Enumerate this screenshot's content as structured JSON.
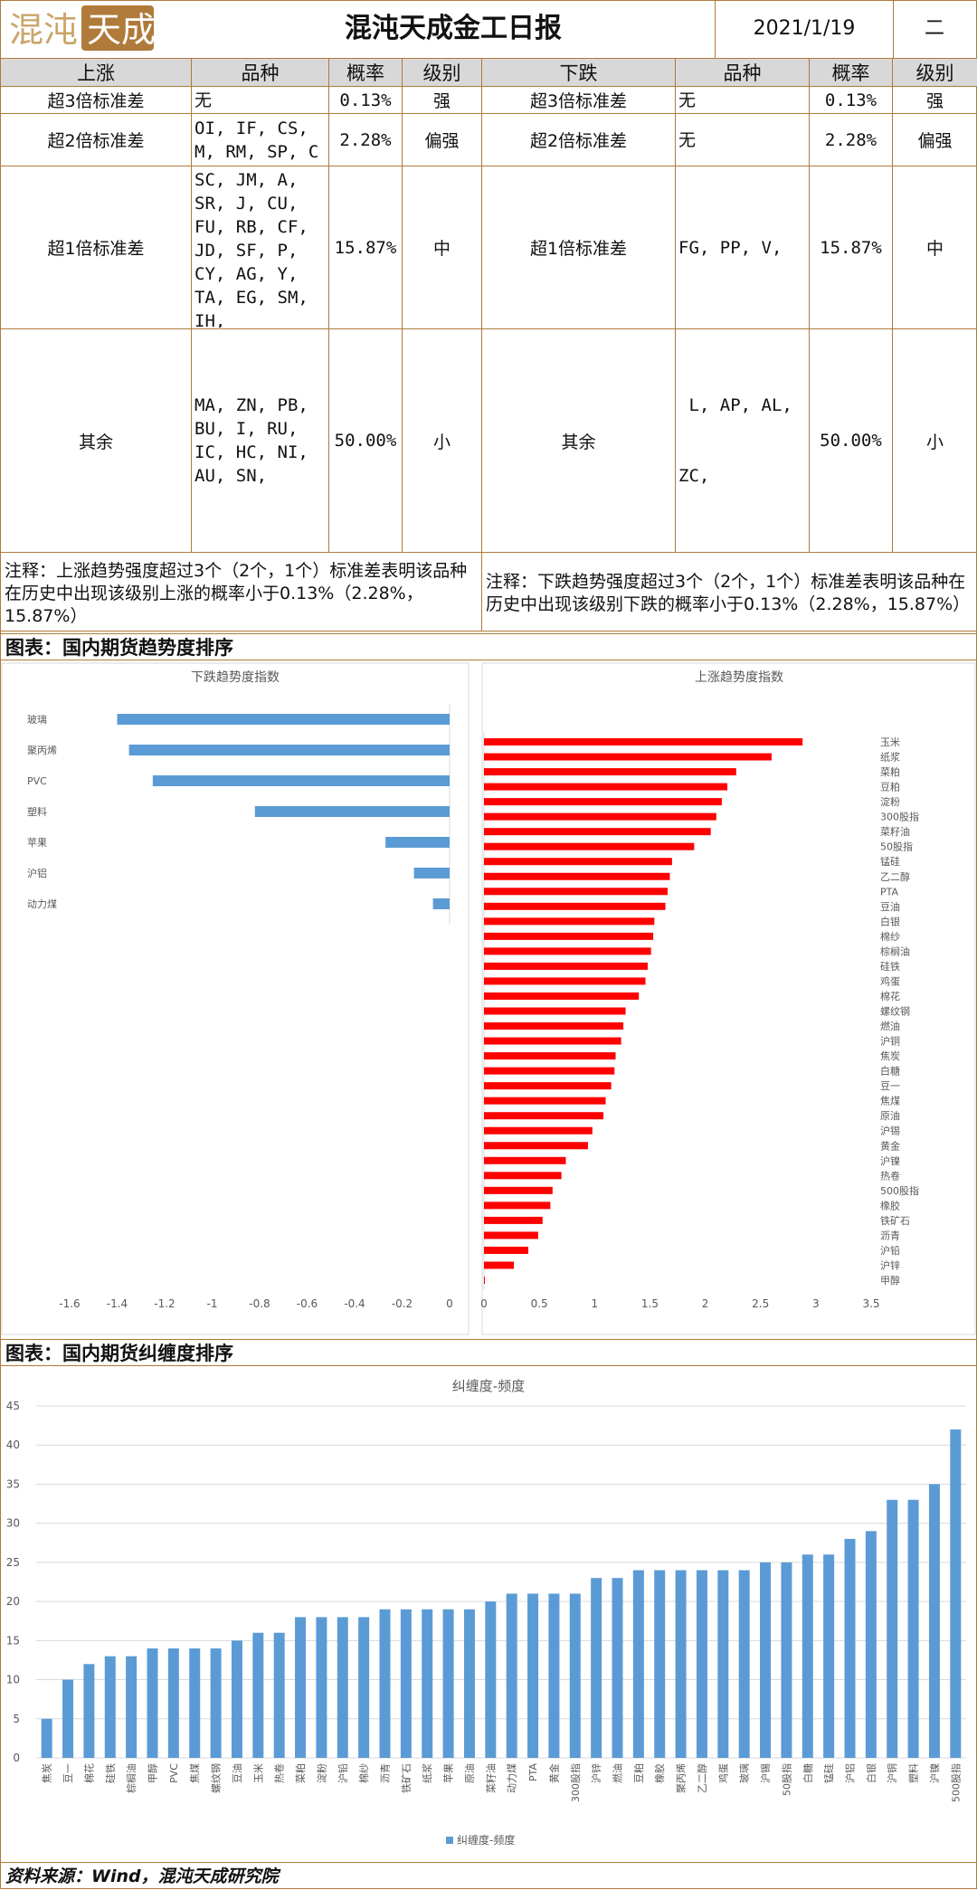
{
  "header": {
    "logo_text": "混沌天成",
    "title": "混沌天成金工日报",
    "date": "2021/1/19",
    "weekday": "二"
  },
  "table": {
    "up_head": {
      "col1": "上涨",
      "col2": "品种",
      "col3": "概率",
      "col4": "级别"
    },
    "down_head": {
      "col1": "下跌",
      "col2": "品种",
      "col3": "概率",
      "col4": "级别"
    },
    "rows": [
      {
        "level": "超3倍标准差",
        "up_varieties": [
          "无"
        ],
        "prob": "0.13%",
        "grade": "强",
        "down_varieties": [
          "无"
        ]
      },
      {
        "level": "超2倍标准差",
        "up_varieties": [
          "OI, IF, CS,",
          "M, RM, SP, C"
        ],
        "prob": "2.28%",
        "grade": "偏强",
        "down_varieties": [
          "无"
        ]
      },
      {
        "level": "超1倍标准差",
        "up_varieties": [
          "SC, JM, A,",
          "SR, J, CU,",
          "FU, RB, CF,",
          "JD, SF, P,",
          "CY, AG, Y,",
          "TA, EG, SM,",
          "IH,"
        ],
        "prob": "15.87%",
        "grade": "中",
        "down_varieties": [
          "FG, PP, V,"
        ]
      },
      {
        "level": "其余",
        "up_varieties": [
          "MA, ZN, PB,",
          "BU, I, RU,",
          "IC, HC, NI,",
          "AU, SN,"
        ],
        "prob": "50.00%",
        "grade": "小",
        "down_varieties": [
          " L, AP, AL,",
          "ZC,"
        ]
      }
    ],
    "note_up": "注释：上涨趋势强度超过3个（2个，1个）标准差表明该品种在历史中出现该级别上涨的概率小于0.13%（2.28%，15.87%）",
    "note_down": "注释：下跌趋势强度超过3个（2个，1个）标准差表明该品种在历史中出现该级别下跌的概率小于0.13%（2.28%，15.87%）"
  },
  "section_trend": "图表：国内期货趋势度排序",
  "section_entangle": "图表：国内期货纠缠度排序",
  "footer": "资料来源：Wind，混沌天成研究院",
  "chart_data": [
    {
      "type": "bar",
      "orientation": "horizontal",
      "title": "下跌趋势度指数",
      "categories": [
        "玻璃",
        "聚丙烯",
        "PVC",
        "塑料",
        "苹果",
        "沪铝",
        "动力煤"
      ],
      "values": [
        -1.4,
        -1.35,
        -1.25,
        -0.82,
        -0.27,
        -0.15,
        -0.07
      ],
      "xlim": [
        -1.6,
        0
      ],
      "ticks": [
        "-1.6",
        "-1.4",
        "-1.2",
        "-1",
        "-0.8",
        "-0.6",
        "-0.4",
        "-0.2",
        "0"
      ],
      "color": "#5b9bd5",
      "grid": false
    },
    {
      "type": "bar",
      "orientation": "horizontal",
      "title": "上涨趋势度指数",
      "categories": [
        "玉米",
        "纸浆",
        "菜粕",
        "豆粕",
        "淀粉",
        "300股指",
        "菜籽油",
        "50股指",
        "锰硅",
        "乙二醇",
        "PTA",
        "豆油",
        "白银",
        "棉纱",
        "棕榈油",
        "硅铁",
        "鸡蛋",
        "棉花",
        "螺纹钢",
        "燃油",
        "沪铜",
        "焦炭",
        "白糖",
        "豆一",
        "焦煤",
        "原油",
        "沪锡",
        "黄金",
        "沪镍",
        "热卷",
        "500股指",
        "橡胶",
        "铁矿石",
        "沥青",
        "沪铅",
        "沪锌",
        "甲醇"
      ],
      "values": [
        2.88,
        2.6,
        2.28,
        2.2,
        2.15,
        2.1,
        2.05,
        1.9,
        1.7,
        1.68,
        1.66,
        1.64,
        1.54,
        1.53,
        1.51,
        1.48,
        1.46,
        1.4,
        1.28,
        1.26,
        1.24,
        1.19,
        1.18,
        1.15,
        1.1,
        1.08,
        0.98,
        0.94,
        0.74,
        0.7,
        0.62,
        0.6,
        0.53,
        0.49,
        0.4,
        0.27,
        0.0
      ],
      "xlim": [
        0,
        3.5
      ],
      "ticks": [
        "0",
        "0.5",
        "1",
        "1.5",
        "2",
        "2.5",
        "3",
        "3.5"
      ],
      "color": "#ff0000",
      "grid": false
    },
    {
      "type": "bar",
      "title": "纠缠度-频度",
      "legend": "纠缠度-频度",
      "legend_position": "bottom",
      "categories": [
        "焦炭",
        "豆一",
        "棉花",
        "硅铁",
        "棕榈油",
        "甲醇",
        "PVC",
        "焦煤",
        "螺纹钢",
        "豆油",
        "玉米",
        "热卷",
        "菜粕",
        "淀粉",
        "沪铅",
        "棉纱",
        "沥青",
        "铁矿石",
        "纸浆",
        "苹果",
        "原油",
        "菜籽油",
        "动力煤",
        "PTA",
        "黄金",
        "300股指",
        "沪锌",
        "燃油",
        "豆粕",
        "橡胶",
        "聚丙烯",
        "乙二醇",
        "鸡蛋",
        "玻璃",
        "沪锡",
        "50股指",
        "白糖",
        "锰硅",
        "沪铝",
        "白银",
        "沪铜",
        "塑料",
        "沪镍",
        "500股指"
      ],
      "values": [
        5,
        10,
        12,
        13,
        13,
        14,
        14,
        14,
        14,
        15,
        16,
        16,
        18,
        18,
        18,
        18,
        19,
        19,
        19,
        19,
        19,
        20,
        21,
        21,
        21,
        21,
        23,
        23,
        24,
        24,
        24,
        24,
        24,
        24,
        25,
        25,
        26,
        26,
        28,
        29,
        33,
        33,
        35,
        42
      ],
      "ylim": [
        0,
        45
      ],
      "yticks": [
        "0",
        "5",
        "10",
        "15",
        "20",
        "25",
        "30",
        "35",
        "40",
        "45"
      ],
      "color": "#5b9bd5",
      "grid": true
    }
  ]
}
